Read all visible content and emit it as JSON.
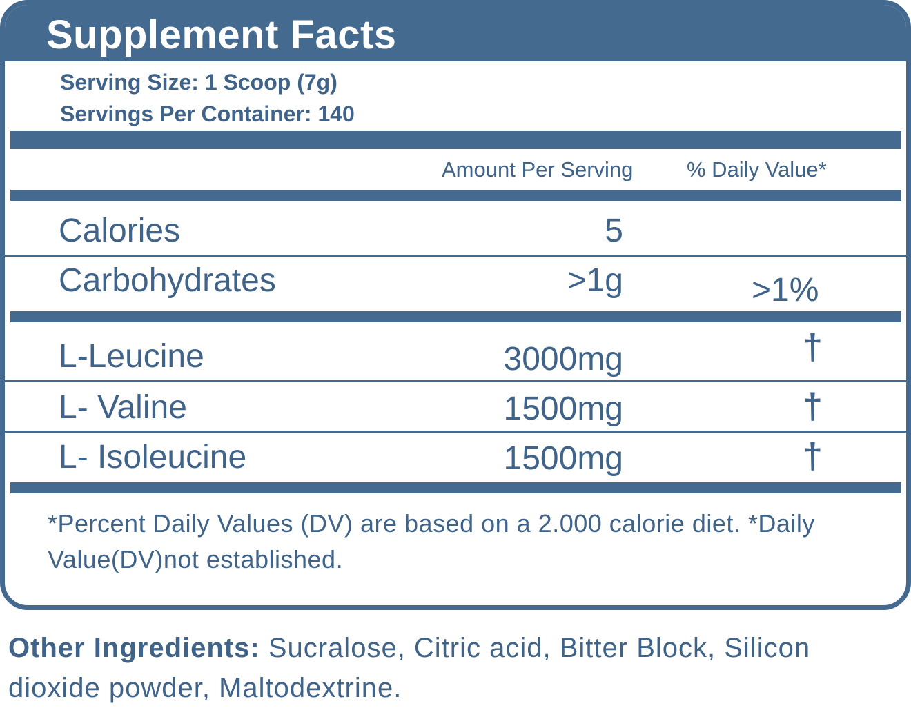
{
  "label": {
    "title": "Supplement Facts",
    "serving_size": "Serving Size: 1 Scoop (7g)",
    "servings_per_container": "Servings Per Container: 140",
    "header_amount": "Amount Per Serving",
    "header_daily_value": "% Daily Value*",
    "rows": [
      {
        "name": "Calories",
        "amount": "5",
        "dv": ""
      },
      {
        "name": "Carbohydrates",
        "amount": ">1g",
        "dv": ">1%"
      },
      {
        "name": "L-Leucine",
        "amount": "3000mg",
        "dv": "†"
      },
      {
        "name": "L- Valine",
        "amount": "1500mg",
        "dv": "†"
      },
      {
        "name": "L- Isoleucine",
        "amount": "1500mg",
        "dv": "†"
      }
    ],
    "footnote": "*Percent Daily Values (DV) are based on a 2.000 calorie diet. *Daily Value(DV)not established."
  },
  "other_ingredients": {
    "heading": "Other Ingredients:",
    "text": " Sucralose, Citric acid, Bitter Block, Silicon dioxide powder, Maltodextrine."
  },
  "colors": {
    "brand_blue": "#456a8f",
    "text_blue": "#3f6389"
  }
}
